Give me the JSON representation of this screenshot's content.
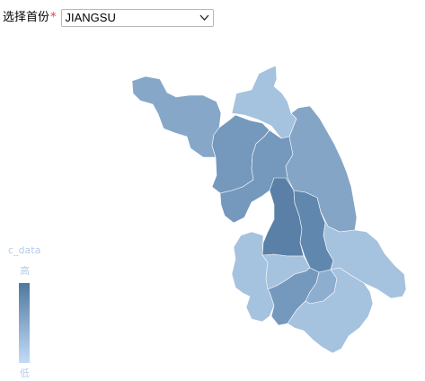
{
  "province_selector": {
    "label": "选择首份",
    "required_mark": "*",
    "selected_value": "JIANGSU"
  },
  "legend": {
    "title": "c_data",
    "high_label": "高",
    "low_label": "低",
    "color_high": "#4e78a1",
    "color_low": "#c3dcf6"
  },
  "map": {
    "province": "JIANGSU",
    "regions": [
      {
        "id": "xuzhou",
        "level": 0.45,
        "color": "#86a7c8"
      },
      {
        "id": "lianyungang",
        "level": 0.2,
        "color": "#a5c2df"
      },
      {
        "id": "suqian",
        "level": 0.6,
        "color": "#7598bd"
      },
      {
        "id": "huaian",
        "level": 0.6,
        "color": "#7598bd"
      },
      {
        "id": "yancheng",
        "level": 0.5,
        "color": "#84a5c6"
      },
      {
        "id": "yangzhou",
        "level": 0.85,
        "color": "#5a80a8"
      },
      {
        "id": "taizhou",
        "level": 0.75,
        "color": "#6087ae"
      },
      {
        "id": "nantong",
        "level": 0.2,
        "color": "#a5c2df"
      },
      {
        "id": "nanjing",
        "level": 0.2,
        "color": "#a5c2df"
      },
      {
        "id": "zhenjiang",
        "level": 0.2,
        "color": "#a5c2df"
      },
      {
        "id": "changzhou",
        "level": 0.6,
        "color": "#7598bd"
      },
      {
        "id": "wuxi",
        "level": 0.4,
        "color": "#8eaed0"
      },
      {
        "id": "suzhou",
        "level": 0.2,
        "color": "#a5c2df"
      }
    ]
  }
}
